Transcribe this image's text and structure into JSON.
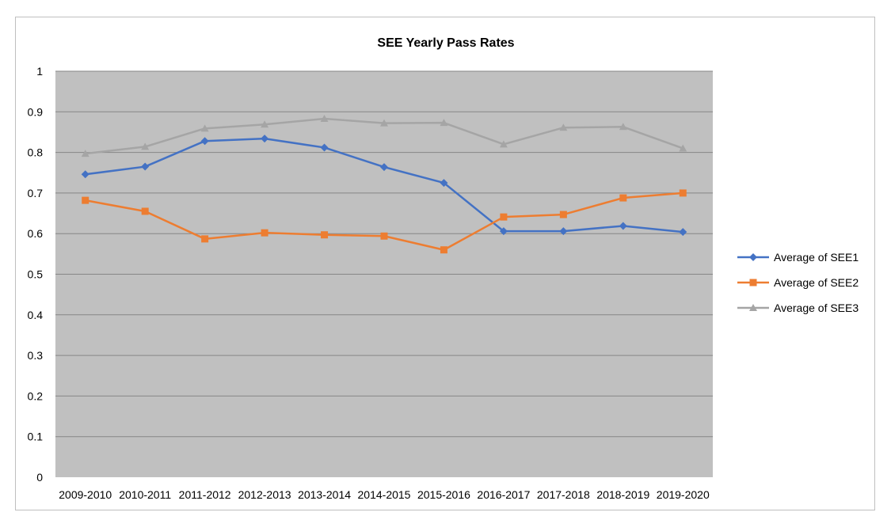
{
  "chart_data": {
    "type": "line",
    "title": "SEE Yearly Pass Rates",
    "xlabel": "",
    "ylabel": "",
    "ylim": [
      0,
      1
    ],
    "yticks": [
      "0",
      "0.1",
      "0.2",
      "0.3",
      "0.4",
      "0.5",
      "0.6",
      "0.7",
      "0.8",
      "0.9",
      "1"
    ],
    "grid": true,
    "legend_position": "right",
    "plot_background": "#c0c0c0",
    "categories": [
      "2009-2010",
      "2010-2011",
      "2011-2012",
      "2012-2013",
      "2013-2014",
      "2014-2015",
      "2015-2016",
      "2016-2017",
      "2017-2018",
      "2018-2019",
      "2019-2020"
    ],
    "series": [
      {
        "name": "Average of SEE1",
        "color": "#4472c4",
        "marker": "diamond",
        "values": [
          0.746,
          0.765,
          0.828,
          0.834,
          0.812,
          0.764,
          0.725,
          0.606,
          0.606,
          0.619,
          0.604
        ]
      },
      {
        "name": "Average of SEE2",
        "color": "#ed7d31",
        "marker": "square",
        "values": [
          0.682,
          0.655,
          0.587,
          0.602,
          0.597,
          0.594,
          0.56,
          0.641,
          0.647,
          0.688,
          0.7
        ]
      },
      {
        "name": "Average of SEE3",
        "color": "#a5a5a5",
        "marker": "triangle",
        "values": [
          0.797,
          0.814,
          0.859,
          0.869,
          0.883,
          0.872,
          0.873,
          0.82,
          0.861,
          0.863,
          0.81
        ]
      }
    ]
  }
}
